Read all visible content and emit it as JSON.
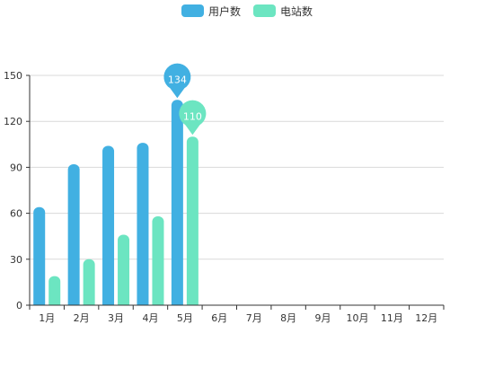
{
  "chart_data": {
    "type": "bar",
    "categories": [
      "1月",
      "2月",
      "3月",
      "4月",
      "5月",
      "6月",
      "7月",
      "8月",
      "9月",
      "10月",
      "11月",
      "12月"
    ],
    "series": [
      {
        "name": "用户数",
        "color": "#41b0e2",
        "values": [
          64,
          92,
          104,
          106,
          134,
          null,
          null,
          null,
          null,
          null,
          null,
          null
        ]
      },
      {
        "name": "电站数",
        "color": "#6ce5c1",
        "values": [
          19,
          30,
          46,
          58,
          110,
          null,
          null,
          null,
          null,
          null,
          null,
          null
        ]
      }
    ],
    "ylim": [
      0,
      150
    ],
    "yticks": [
      0,
      30,
      60,
      90,
      120,
      150
    ],
    "grid": true,
    "legend_position": "top-center",
    "markers": [
      {
        "series_index": 0,
        "category_index": 4,
        "label": "134"
      },
      {
        "series_index": 1,
        "category_index": 4,
        "label": "110"
      }
    ]
  }
}
